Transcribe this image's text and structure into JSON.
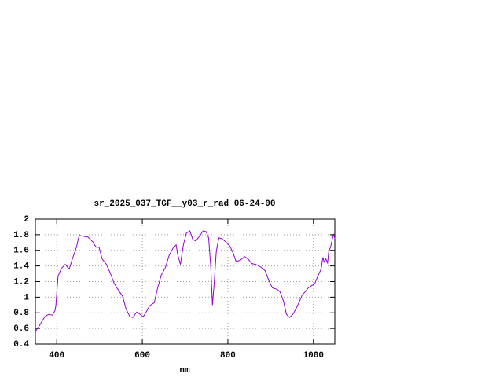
{
  "chart_data": {
    "type": "line",
    "title": "sr_2025_037_TGF__y03_r_rad 06-24-00",
    "x_label": "nm",
    "xlim": [
      350,
      1050
    ],
    "xticks": [
      400,
      600,
      800,
      1000
    ],
    "ylim": [
      0.4,
      2
    ],
    "yticks": [
      0.4,
      0.6,
      0.8,
      1,
      1.2,
      1.4,
      1.6,
      1.8,
      2
    ],
    "grid": true,
    "x": [
      350,
      359,
      372,
      381,
      390,
      396,
      398,
      403,
      411,
      420,
      429,
      436,
      446,
      451,
      453,
      473,
      484,
      492,
      499,
      506,
      516,
      525,
      534,
      543,
      554,
      562,
      571,
      578,
      587,
      595,
      602,
      609,
      617,
      628,
      635,
      644,
      654,
      663,
      672,
      679,
      683,
      689,
      696,
      703,
      711,
      718,
      725,
      735,
      742,
      749,
      755,
      760,
      764,
      768,
      773,
      779,
      786,
      795,
      804,
      812,
      819,
      828,
      839,
      847,
      856,
      865,
      876,
      887,
      896,
      904,
      915,
      922,
      930,
      937,
      944,
      952,
      959,
      966,
      974,
      981,
      988,
      996,
      1003,
      1011,
      1018,
      1022,
      1025,
      1029,
      1033,
      1036,
      1040,
      1044,
      1047,
      1050
    ],
    "series": [
      {
        "color": "#9400d3",
        "values": [
          0.56,
          0.63,
          0.75,
          0.78,
          0.77,
          0.83,
          0.9,
          1.27,
          1.37,
          1.42,
          1.36,
          1.48,
          1.64,
          1.76,
          1.79,
          1.77,
          1.71,
          1.64,
          1.64,
          1.49,
          1.42,
          1.31,
          1.18,
          1.1,
          1.01,
          0.85,
          0.75,
          0.74,
          0.81,
          0.78,
          0.75,
          0.81,
          0.89,
          0.93,
          1.1,
          1.28,
          1.38,
          1.54,
          1.63,
          1.67,
          1.54,
          1.42,
          1.67,
          1.82,
          1.85,
          1.74,
          1.72,
          1.79,
          1.85,
          1.84,
          1.76,
          1.39,
          0.9,
          1.18,
          1.59,
          1.76,
          1.75,
          1.71,
          1.66,
          1.57,
          1.46,
          1.47,
          1.52,
          1.49,
          1.43,
          1.42,
          1.39,
          1.34,
          1.21,
          1.12,
          1.1,
          1.07,
          0.95,
          0.78,
          0.74,
          0.78,
          0.85,
          0.93,
          1.03,
          1.07,
          1.12,
          1.15,
          1.17,
          1.28,
          1.36,
          1.51,
          1.45,
          1.49,
          1.44,
          1.59,
          1.64,
          1.74,
          1.81,
          1.75
        ]
      }
    ]
  }
}
